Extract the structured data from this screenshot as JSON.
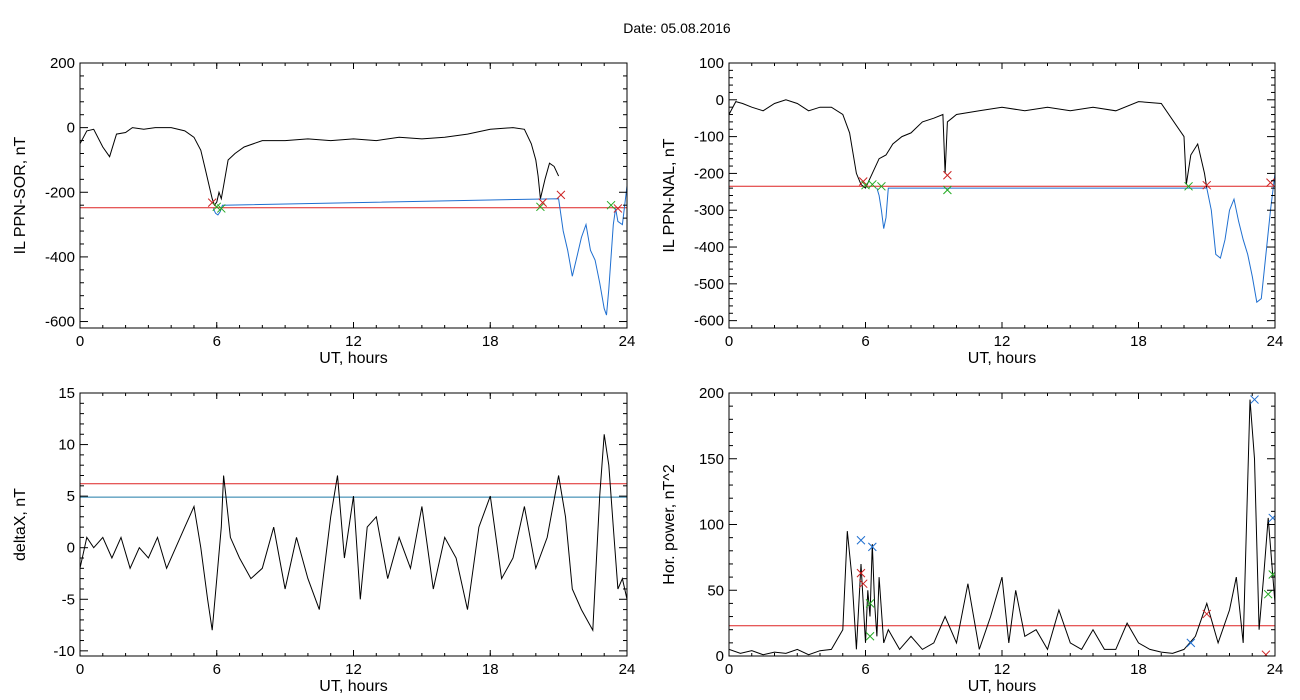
{
  "figure": {
    "title": "Date:  05.08.2016"
  },
  "chart_data": [
    {
      "type": "line",
      "xlabel": "UT, hours",
      "ylabel": "IL PPN-SOR, nT",
      "xlim": [
        0,
        24
      ],
      "ylim": [
        -620,
        200
      ],
      "xticks": [
        0,
        6,
        12,
        18,
        24
      ],
      "yticks": [
        -600,
        -400,
        -200,
        0,
        200
      ],
      "series": [
        {
          "color": "#000000",
          "x": [
            0,
            0.3,
            0.6,
            1.0,
            1.3,
            1.6,
            2.0,
            2.3,
            2.8,
            3.3,
            4.0,
            4.6,
            5.0,
            5.3,
            5.5,
            5.7,
            5.8,
            5.9,
            6.0,
            6.1,
            6.2,
            6.3,
            6.5,
            6.8,
            7.2,
            8.0,
            9.0,
            10.0,
            11.0,
            12.0,
            13.0,
            14.0,
            15.0,
            16.0,
            17.0,
            18.0,
            19.0,
            19.5,
            19.8,
            20.0,
            20.1,
            20.2,
            20.4,
            20.6,
            20.8,
            21.0
          ],
          "y": [
            -50,
            -10,
            -5,
            -60,
            -90,
            -20,
            -15,
            0,
            -5,
            0,
            0,
            -10,
            -30,
            -70,
            -130,
            -190,
            -220,
            -240,
            -230,
            -200,
            -220,
            -180,
            -100,
            -80,
            -60,
            -40,
            -40,
            -35,
            -40,
            -35,
            -40,
            -30,
            -35,
            -30,
            -20,
            -5,
            0,
            -5,
            -50,
            -100,
            -150,
            -220,
            -160,
            -110,
            -120,
            -150
          ]
        },
        {
          "color": "#1f6fd0",
          "x": [
            5.85,
            5.95,
            6.05,
            6.15,
            6.25,
            21.0,
            21.2,
            21.4,
            21.6,
            21.8,
            22.0,
            22.2,
            22.4,
            22.6,
            22.8,
            23.0,
            23.1,
            23.2,
            23.4,
            23.5,
            23.6,
            23.8,
            24.0
          ],
          "y": [
            -250,
            -265,
            -270,
            -260,
            -240,
            -220,
            -320,
            -380,
            -460,
            -400,
            -340,
            -300,
            -380,
            -410,
            -480,
            -560,
            -580,
            -500,
            -300,
            -250,
            -290,
            -300,
            -180
          ]
        }
      ],
      "reference_lines": [
        {
          "y": -248,
          "color": "#dd2222"
        }
      ],
      "markers": [
        {
          "x": 5.8,
          "y": -232,
          "color": "#cc2222"
        },
        {
          "x": 6.0,
          "y": -245,
          "color": "#22aa22"
        },
        {
          "x": 6.2,
          "y": -250,
          "color": "#22aa22"
        },
        {
          "x": 20.2,
          "y": -245,
          "color": "#22aa22"
        },
        {
          "x": 20.3,
          "y": -232,
          "color": "#cc2222"
        },
        {
          "x": 21.1,
          "y": -208,
          "color": "#cc2222"
        },
        {
          "x": 23.3,
          "y": -240,
          "color": "#22aa22"
        },
        {
          "x": 23.6,
          "y": -250,
          "color": "#cc2222"
        }
      ]
    },
    {
      "type": "line",
      "xlabel": "UT, hours",
      "ylabel": "IL PPN-NAL, nT",
      "xlim": [
        0,
        24
      ],
      "ylim": [
        -620,
        100
      ],
      "xticks": [
        0,
        6,
        12,
        18,
        24
      ],
      "yticks": [
        -600,
        -500,
        -400,
        -300,
        -200,
        -100,
        0,
        100
      ],
      "series": [
        {
          "color": "#000000",
          "x": [
            0,
            0.3,
            0.6,
            1.0,
            1.5,
            2.0,
            2.5,
            3.0,
            3.5,
            4.0,
            4.5,
            5.0,
            5.3,
            5.6,
            5.8,
            6.0,
            6.3,
            6.6,
            6.9,
            7.2,
            7.6,
            8.0,
            8.5,
            9.0,
            9.4,
            9.5,
            9.6,
            9.8,
            10.0,
            11.0,
            12.0,
            13.0,
            14.0,
            15.0,
            16.0,
            17.0,
            18.0,
            19.0,
            20.0,
            20.1,
            20.3,
            20.6,
            20.9,
            21.0
          ],
          "y": [
            -40,
            -5,
            -10,
            -20,
            -30,
            -10,
            0,
            -10,
            -30,
            -20,
            -20,
            -40,
            -90,
            -200,
            -230,
            -240,
            -200,
            -160,
            -150,
            -120,
            -100,
            -90,
            -60,
            -50,
            -40,
            -200,
            -60,
            -50,
            -40,
            -30,
            -20,
            -30,
            -20,
            -30,
            -20,
            -30,
            -5,
            -10,
            -100,
            -230,
            -150,
            -120,
            -200,
            -240
          ]
        },
        {
          "color": "#1f6fd0",
          "x": [
            6.5,
            6.6,
            6.7,
            6.8,
            6.9,
            7.0,
            21.0,
            21.2,
            21.4,
            21.6,
            21.8,
            22.0,
            22.2,
            22.4,
            22.6,
            22.8,
            23.0,
            23.2,
            23.4,
            23.6,
            23.8,
            24.0
          ],
          "y": [
            -240,
            -260,
            -300,
            -350,
            -320,
            -240,
            -240,
            -300,
            -420,
            -430,
            -380,
            -300,
            -270,
            -330,
            -380,
            -420,
            -480,
            -550,
            -540,
            -420,
            -300,
            -200
          ]
        }
      ],
      "reference_lines": [
        {
          "y": -235,
          "color": "#dd2222"
        }
      ],
      "markers": [
        {
          "x": 5.9,
          "y": -222,
          "color": "#cc2222"
        },
        {
          "x": 6.0,
          "y": -232,
          "color": "#22aa22"
        },
        {
          "x": 6.3,
          "y": -230,
          "color": "#22aa22"
        },
        {
          "x": 6.7,
          "y": -235,
          "color": "#22aa22"
        },
        {
          "x": 9.6,
          "y": -205,
          "color": "#cc2222"
        },
        {
          "x": 9.6,
          "y": -245,
          "color": "#22aa22"
        },
        {
          "x": 20.2,
          "y": -235,
          "color": "#22aa22"
        },
        {
          "x": 21.0,
          "y": -232,
          "color": "#cc2222"
        },
        {
          "x": 23.8,
          "y": -225,
          "color": "#cc2222"
        }
      ]
    },
    {
      "type": "line",
      "xlabel": "UT, hours",
      "ylabel": "deltaX, nT",
      "xlim": [
        0,
        24
      ],
      "ylim": [
        -10.5,
        15
      ],
      "xticks": [
        0,
        6,
        12,
        18,
        24
      ],
      "yticks": [
        -10,
        -5,
        0,
        5,
        10,
        15
      ],
      "series": [
        {
          "color": "#000000",
          "x": [
            0,
            0.3,
            0.6,
            1.0,
            1.4,
            1.8,
            2.2,
            2.6,
            3.0,
            3.4,
            3.8,
            4.2,
            4.6,
            5.0,
            5.3,
            5.6,
            5.8,
            6.0,
            6.2,
            6.3,
            6.4,
            6.6,
            7.0,
            7.5,
            8.0,
            8.5,
            9.0,
            9.5,
            10.0,
            10.5,
            11.0,
            11.3,
            11.6,
            12.0,
            12.3,
            12.6,
            13.0,
            13.5,
            14.0,
            14.5,
            15.0,
            15.5,
            16.0,
            16.5,
            17.0,
            17.5,
            18.0,
            18.5,
            19.0,
            19.5,
            20.0,
            20.5,
            21.0,
            21.3,
            21.6,
            22.0,
            22.5,
            22.8,
            23.0,
            23.2,
            23.4,
            23.6,
            23.8,
            24.0
          ],
          "y": [
            -2,
            1,
            0,
            1,
            -1,
            1,
            -2,
            0,
            -1,
            1,
            -2,
            0,
            2,
            4,
            0,
            -5,
            -8,
            -3,
            2,
            7,
            5,
            1,
            -1,
            -3,
            -2,
            2,
            -4,
            1,
            -3,
            -6,
            3,
            7,
            -1,
            5,
            -5,
            2,
            3,
            -3,
            1,
            -2,
            4,
            -4,
            1,
            -1,
            -6,
            2,
            5,
            -3,
            -1,
            4,
            -2,
            1,
            7,
            3,
            -4,
            -6,
            -8,
            5,
            11,
            8,
            2,
            -4,
            -3,
            -5
          ]
        }
      ],
      "reference_lines": [
        {
          "y": 6.2,
          "color": "#dd2222"
        },
        {
          "y": 4.9,
          "color": "#1f7aa8"
        }
      ],
      "markers": []
    },
    {
      "type": "line",
      "xlabel": "UT, hours",
      "ylabel": "Hor. power, nT^2",
      "xlim": [
        0,
        24
      ],
      "ylim": [
        0,
        200
      ],
      "xticks": [
        0,
        6,
        12,
        18,
        24
      ],
      "yticks": [
        0,
        50,
        100,
        150,
        200
      ],
      "series": [
        {
          "color": "#000000",
          "x": [
            0,
            0.5,
            1.0,
            1.5,
            2.0,
            2.5,
            3.0,
            3.5,
            4.0,
            4.5,
            5.0,
            5.2,
            5.4,
            5.6,
            5.8,
            6.0,
            6.1,
            6.2,
            6.3,
            6.4,
            6.5,
            6.6,
            6.8,
            7.0,
            7.5,
            8.0,
            8.5,
            9.0,
            9.5,
            10.0,
            10.5,
            11.0,
            11.5,
            12.0,
            12.3,
            12.6,
            13.0,
            13.5,
            14.0,
            14.5,
            15.0,
            15.5,
            16.0,
            16.5,
            17.0,
            17.5,
            18.0,
            18.5,
            19.0,
            19.5,
            20.0,
            20.5,
            21.0,
            21.5,
            22.0,
            22.3,
            22.6,
            22.9,
            23.1,
            23.3,
            23.5,
            23.7,
            24.0
          ],
          "y": [
            5,
            2,
            4,
            1,
            3,
            2,
            5,
            1,
            4,
            5,
            20,
            95,
            60,
            5,
            70,
            10,
            50,
            30,
            85,
            40,
            15,
            60,
            10,
            20,
            5,
            15,
            5,
            10,
            30,
            10,
            55,
            5,
            30,
            60,
            10,
            50,
            15,
            20,
            5,
            35,
            10,
            5,
            20,
            5,
            5,
            25,
            10,
            5,
            3,
            2,
            5,
            15,
            40,
            10,
            35,
            60,
            10,
            195,
            150,
            20,
            60,
            105,
            40
          ]
        }
      ],
      "reference_lines": [
        {
          "y": 23,
          "color": "#dd2222"
        }
      ],
      "markers": [
        {
          "x": 5.8,
          "y": 88,
          "color": "#1f6fd0"
        },
        {
          "x": 5.8,
          "y": 63,
          "color": "#cc2222"
        },
        {
          "x": 5.9,
          "y": 55,
          "color": "#cc2222"
        },
        {
          "x": 6.2,
          "y": 40,
          "color": "#22aa22"
        },
        {
          "x": 6.3,
          "y": 83,
          "color": "#1f6fd0"
        },
        {
          "x": 6.2,
          "y": 15,
          "color": "#22aa22"
        },
        {
          "x": 20.3,
          "y": 10,
          "color": "#1f6fd0"
        },
        {
          "x": 21.0,
          "y": 32,
          "color": "#cc2222"
        },
        {
          "x": 23.1,
          "y": 195,
          "color": "#1f6fd0"
        },
        {
          "x": 23.6,
          "y": 1,
          "color": "#cc2222"
        },
        {
          "x": 23.7,
          "y": 47,
          "color": "#22aa22"
        },
        {
          "x": 23.9,
          "y": 105,
          "color": "#1f6fd0"
        },
        {
          "x": 23.9,
          "y": 62,
          "color": "#22aa22"
        }
      ]
    }
  ]
}
